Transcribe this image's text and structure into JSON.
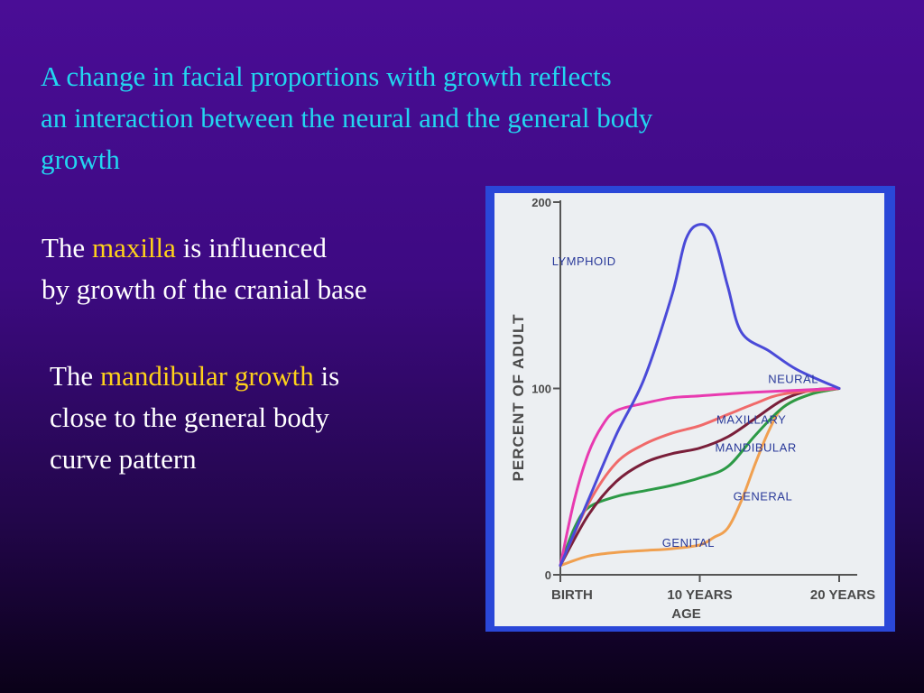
{
  "headline": {
    "line1": "A change in facial proportions with growth reflects",
    "line2": "an interaction between the neural and the general body",
    "line3": "growth"
  },
  "para1": {
    "pre": "The ",
    "highlight": "maxilla",
    "post": " is influenced",
    "line2": "by growth of the cranial base"
  },
  "para2": {
    "pre": "The ",
    "highlight": "mandibular growth",
    "post": " is",
    "line2": "close to the general body",
    "line3": "curve pattern"
  },
  "chart_data": {
    "type": "line",
    "ylabel": "PERCENT OF ADULT",
    "xlabel": "AGE",
    "yticks": [
      "0",
      "100",
      "200"
    ],
    "xticks": [
      "BIRTH",
      "10 YEARS",
      "20 YEARS"
    ],
    "ylim": [
      0,
      200
    ],
    "xlim": [
      0,
      20
    ],
    "series": [
      {
        "name": "LYMPHOID",
        "color": "#4a4ad8",
        "points": [
          [
            0,
            5
          ],
          [
            2,
            40
          ],
          [
            4,
            75
          ],
          [
            6,
            105
          ],
          [
            8,
            150
          ],
          [
            9,
            180
          ],
          [
            10,
            188
          ],
          [
            11,
            182
          ],
          [
            12,
            155
          ],
          [
            13,
            130
          ],
          [
            15,
            120
          ],
          [
            17,
            110
          ],
          [
            20,
            100
          ]
        ]
      },
      {
        "name": "NEURAL",
        "color": "#e83ab0",
        "points": [
          [
            0,
            5
          ],
          [
            1,
            40
          ],
          [
            2,
            65
          ],
          [
            3,
            80
          ],
          [
            4,
            88
          ],
          [
            6,
            92
          ],
          [
            8,
            95
          ],
          [
            10,
            96
          ],
          [
            14,
            98
          ],
          [
            20,
            100
          ]
        ]
      },
      {
        "name": "MAXILLARY",
        "color": "#f06a6a",
        "points": [
          [
            0,
            5
          ],
          [
            2,
            38
          ],
          [
            4,
            60
          ],
          [
            6,
            70
          ],
          [
            8,
            76
          ],
          [
            10,
            80
          ],
          [
            12,
            86
          ],
          [
            14,
            92
          ],
          [
            16,
            97
          ],
          [
            20,
            100
          ]
        ]
      },
      {
        "name": "MANDIBULAR",
        "color": "#7a1f3a",
        "points": [
          [
            0,
            5
          ],
          [
            2,
            32
          ],
          [
            4,
            50
          ],
          [
            6,
            60
          ],
          [
            8,
            65
          ],
          [
            10,
            68
          ],
          [
            12,
            74
          ],
          [
            14,
            84
          ],
          [
            16,
            94
          ],
          [
            18,
            99
          ],
          [
            20,
            100
          ]
        ]
      },
      {
        "name": "GENERAL",
        "color": "#2c9a46",
        "points": [
          [
            0,
            5
          ],
          [
            1,
            25
          ],
          [
            2,
            36
          ],
          [
            4,
            42
          ],
          [
            6,
            45
          ],
          [
            8,
            48
          ],
          [
            10,
            52
          ],
          [
            12,
            58
          ],
          [
            14,
            75
          ],
          [
            16,
            90
          ],
          [
            18,
            97
          ],
          [
            20,
            100
          ]
        ]
      },
      {
        "name": "GENITAL",
        "color": "#f0a050",
        "points": [
          [
            0,
            5
          ],
          [
            2,
            10
          ],
          [
            4,
            12
          ],
          [
            6,
            13
          ],
          [
            8,
            14
          ],
          [
            10,
            16
          ],
          [
            11,
            20
          ],
          [
            12,
            25
          ],
          [
            13,
            40
          ],
          [
            14,
            60
          ],
          [
            15,
            78
          ],
          [
            16,
            90
          ],
          [
            18,
            97
          ],
          [
            20,
            100
          ]
        ]
      }
    ]
  }
}
